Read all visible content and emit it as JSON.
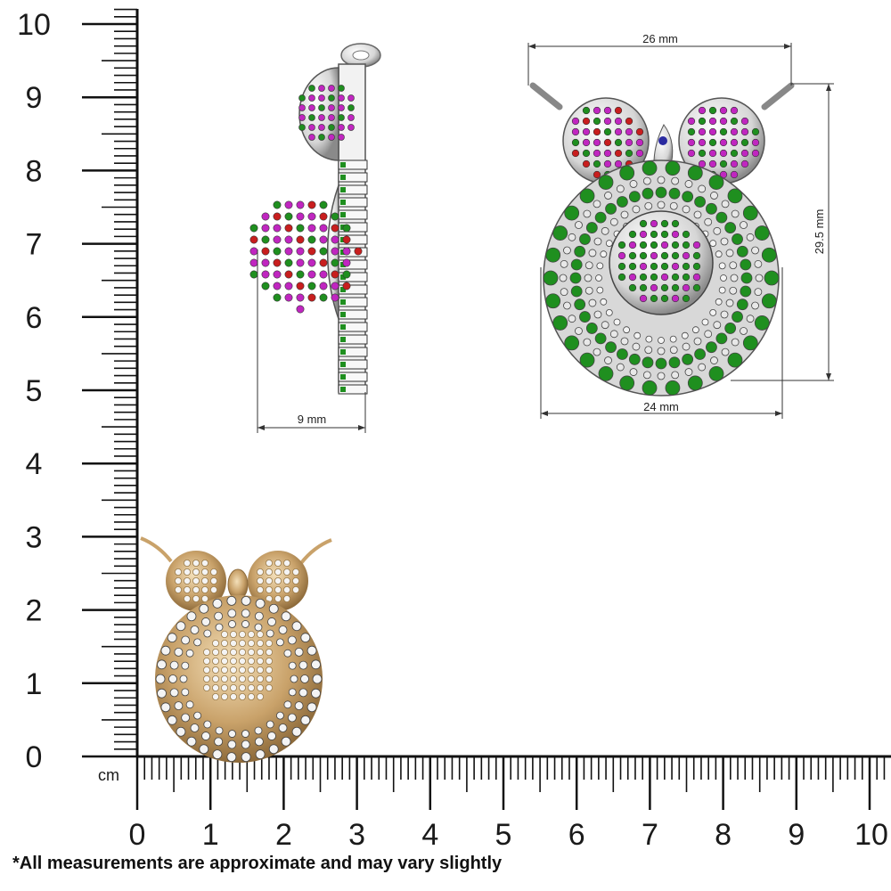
{
  "rulers": {
    "unit_label": "cm",
    "vertical_labels": [
      "0",
      "1",
      "2",
      "3",
      "4",
      "5",
      "6",
      "7",
      "8",
      "9",
      "10"
    ],
    "horizontal_labels": [
      "0",
      "1",
      "2",
      "3",
      "4",
      "5",
      "6",
      "7",
      "8",
      "9",
      "10"
    ]
  },
  "side_view": {
    "depth_label": "9 mm"
  },
  "front_view": {
    "width_top_label": "26 mm",
    "height_label": "29.5 mm",
    "width_bottom_label": "24 mm"
  },
  "colors": {
    "gem_green": "#1f8f1f",
    "gem_magenta": "#c026c0",
    "gem_red": "#c81e1e",
    "metal_silver": "#e8e8e8",
    "gold": "#c9a26a",
    "diamond": "#f4f4f4"
  },
  "disclaimer": "*All measurements are approximate and may vary slightly"
}
